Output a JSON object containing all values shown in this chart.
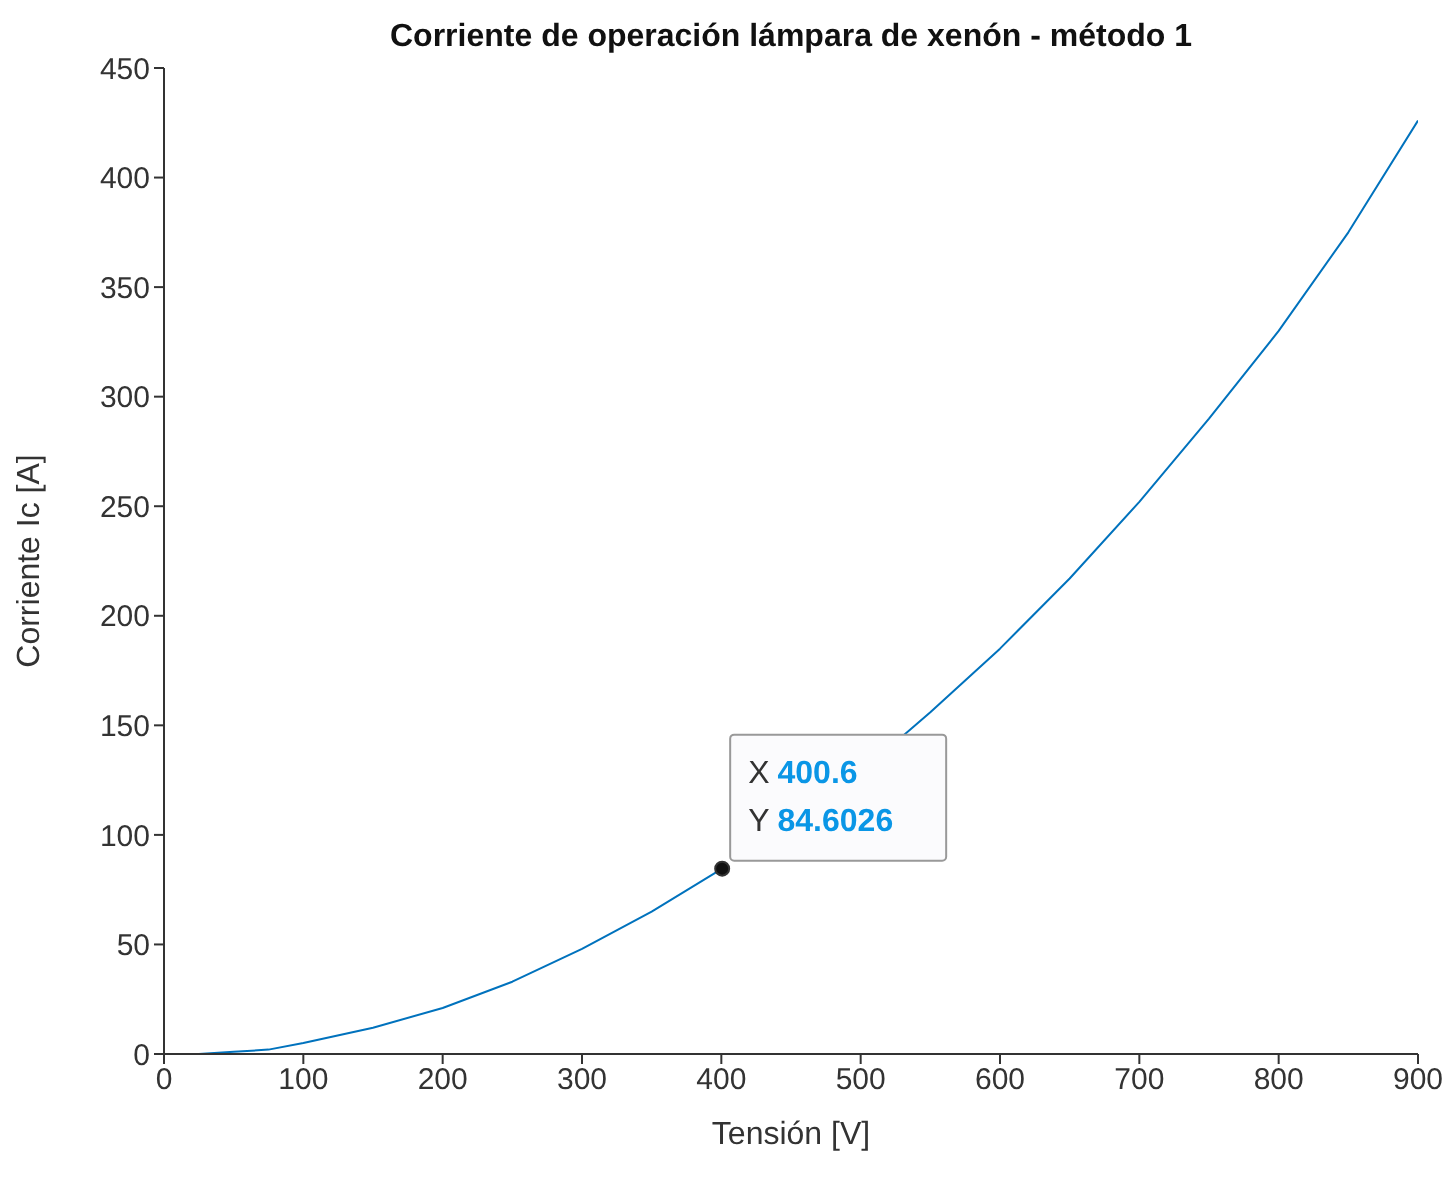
{
  "chart_data": {
    "type": "line",
    "title": "Corriente de operación lámpara de xenón - método 1",
    "xlabel": "Tensión [V]",
    "ylabel": "Corriente Ic [A]",
    "x": [
      0,
      25,
      50,
      75,
      100,
      150,
      200,
      250,
      300,
      350,
      400.6,
      450,
      500,
      530,
      550,
      600,
      650,
      700,
      750,
      800,
      850,
      900
    ],
    "series": [
      {
        "color": "#0072bd",
        "values": [
          0,
          0,
          1,
          2,
          5,
          12,
          21,
          33,
          48,
          65,
          84.6026,
          null,
          null,
          145,
          156,
          185,
          217,
          252,
          290,
          330,
          375,
          426
        ]
      }
    ],
    "xlim": [
      0,
      900
    ],
    "xticks": [
      0,
      100,
      200,
      300,
      400,
      500,
      600,
      700,
      800,
      900
    ],
    "ylim": [
      0,
      450
    ],
    "yticks": [
      0,
      50,
      100,
      150,
      200,
      250,
      300,
      350,
      400,
      450
    ],
    "grid": false,
    "marker": "none",
    "line_style": "solid",
    "annotations": [
      {
        "text": "X 400.6\nY 84.6026",
        "x": 400.6,
        "y": 84.6026
      }
    ]
  }
}
